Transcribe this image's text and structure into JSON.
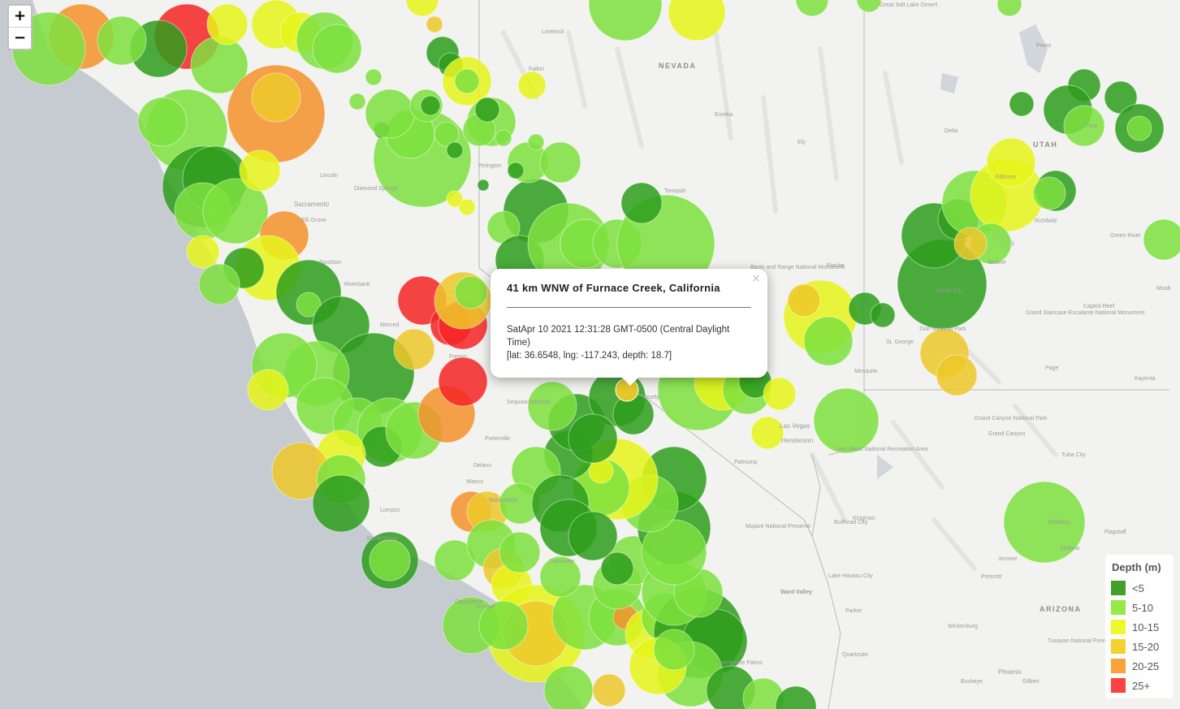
{
  "map": {
    "state_labels": [
      "NEVADA",
      "UTAH",
      "ARIZONA"
    ],
    "place_labels": [
      "Great Salt Lake Desert",
      "Sacramento",
      "Elk Grove",
      "Stockton",
      "Lincoln",
      "Diamond Springs",
      "Riverbank",
      "Merced",
      "Fresno",
      "Sequoia National",
      "Porterville",
      "Delano",
      "Wasco",
      "Bakersfield",
      "Lancaster",
      "Oxnard",
      "Carpinteria",
      "Lompoc",
      "Santa Maria",
      "Las Vegas",
      "Henderson",
      "Lake Mead National Recreation Area",
      "Mojave National Preserve",
      "Kingman",
      "Lake Havasu City",
      "Bullhead City",
      "Prescott",
      "Phoenix",
      "Gilbert",
      "Buckeye",
      "Wickenburg",
      "Sedona",
      "Flagstaff",
      "Williams",
      "Grand Canyon",
      "Grand Canyon National Park",
      "Kayenta",
      "Tuba City",
      "Page",
      "St. George",
      "Cedar City",
      "Zion National Park",
      "Mesquite",
      "Grand Staircase-Escalante National Monument",
      "Capitol Reef",
      "Moab",
      "Green River",
      "Price",
      "Provo",
      "Delta",
      "Fillmore",
      "Richfield",
      "Beaver",
      "Ely",
      "Eureka",
      "Tonopah",
      "Pahrump",
      "Beatty",
      "Pioche",
      "Basin and Range National Monument",
      "Lovelock",
      "Fallon",
      "Yerington",
      "Twentynine Palms",
      "Ward Valley",
      "Parker",
      "Quartzsite",
      "Jerome",
      "Tusayan National Forest"
    ],
    "depth_colors": {
      "lt5": "#2e9e1c",
      "d5_10": "#7ee03e",
      "d10_15": "#e6f51a",
      "d15_20": "#edc82a",
      "d20_25": "#f5922c",
      "d25plus": "#f52525"
    }
  },
  "controls": {
    "zoom_in": "+",
    "zoom_out": "−"
  },
  "popup": {
    "title": "41 km WNW of Furnace Creek, California",
    "close": "×",
    "time": "SatApr 10 2021 12:31:28 GMT-0500 (Central Daylight Time)",
    "coords": "[lat: 36.6548, lng: -117.243, depth: 18.7]"
  },
  "legend": {
    "title": "Depth (m)",
    "items": [
      {
        "label": "<5",
        "color": "#43a02a"
      },
      {
        "label": "5-10",
        "color": "#96ea45"
      },
      {
        "label": "10-15",
        "color": "#ecf92c"
      },
      {
        "label": "15-20",
        "color": "#f3d230"
      },
      {
        "label": "20-25",
        "color": "#f9a33a"
      },
      {
        "label": "25+",
        "color": "#fd4242"
      }
    ]
  }
}
